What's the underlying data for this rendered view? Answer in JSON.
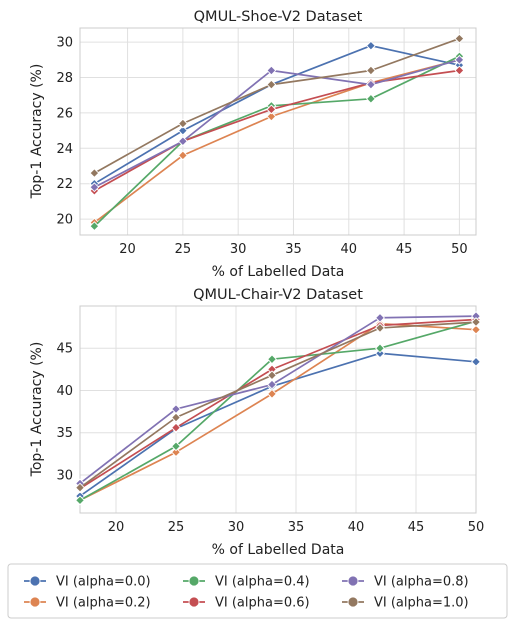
{
  "legend": {
    "entries": [
      "VI (alpha=0.0)",
      "VI (alpha=0.2)",
      "VI (alpha=0.4)",
      "VI (alpha=0.6)",
      "VI (alpha=0.8)",
      "VI (alpha=1.0)"
    ],
    "colors": [
      "#4c72b0",
      "#dd8452",
      "#55a868",
      "#c44e52",
      "#8172b3",
      "#937860"
    ],
    "placement": "bottom-center"
  },
  "chart_data": [
    {
      "type": "line",
      "title": "QMUL-Shoe-V2 Dataset",
      "xlabel": "% of Labelled Data",
      "ylabel": "Top-1 Accuracy (%)",
      "xlim": [
        15.7,
        51.5
      ],
      "ylim": [
        19.1,
        30.8
      ],
      "xticks": [
        20,
        25,
        30,
        35,
        40,
        45,
        50
      ],
      "yticks": [
        20,
        22,
        24,
        26,
        28,
        30
      ],
      "grid": true,
      "x": [
        17,
        25,
        33,
        42,
        50
      ],
      "series": [
        {
          "name": "VI (alpha=0.0)",
          "values": [
            22.0,
            25.0,
            27.6,
            29.8,
            28.7
          ]
        },
        {
          "name": "VI (alpha=0.2)",
          "values": [
            19.8,
            23.6,
            25.8,
            27.7,
            29.0
          ]
        },
        {
          "name": "VI (alpha=0.4)",
          "values": [
            19.6,
            24.4,
            26.4,
            26.8,
            29.2
          ]
        },
        {
          "name": "VI (alpha=0.6)",
          "values": [
            21.6,
            24.4,
            26.2,
            27.7,
            28.4
          ]
        },
        {
          "name": "VI (alpha=0.8)",
          "values": [
            21.8,
            24.4,
            28.4,
            27.6,
            29.0
          ]
        },
        {
          "name": "VI (alpha=1.0)",
          "values": [
            22.6,
            25.4,
            27.6,
            28.4,
            30.2
          ]
        }
      ]
    },
    {
      "type": "line",
      "title": "QMUL-Chair-V2 Dataset",
      "xlabel": "% of Labelled Data",
      "ylabel": "Top-1 Accuracy (%)",
      "xlim": [
        17,
        50
      ],
      "ylim": [
        25.5,
        50.0
      ],
      "xticks": [
        20,
        25,
        30,
        35,
        40,
        45,
        50
      ],
      "yticks": [
        30,
        35,
        40,
        45
      ],
      "grid": true,
      "x": [
        17,
        25,
        33,
        42,
        50
      ],
      "series": [
        {
          "name": "VI (alpha=0.0)",
          "values": [
            27.5,
            35.5,
            40.5,
            44.4,
            43.4
          ]
        },
        {
          "name": "VI (alpha=0.2)",
          "values": [
            27.0,
            32.7,
            39.6,
            47.9,
            47.2
          ]
        },
        {
          "name": "VI (alpha=0.4)",
          "values": [
            27.0,
            33.4,
            43.7,
            45.0,
            48.2
          ]
        },
        {
          "name": "VI (alpha=0.6)",
          "values": [
            28.4,
            35.6,
            42.5,
            47.7,
            48.4
          ]
        },
        {
          "name": "VI (alpha=0.8)",
          "values": [
            29.0,
            37.8,
            40.7,
            48.6,
            48.8
          ]
        },
        {
          "name": "VI (alpha=1.0)",
          "values": [
            28.5,
            36.8,
            41.8,
            47.4,
            48.1
          ]
        }
      ]
    }
  ]
}
